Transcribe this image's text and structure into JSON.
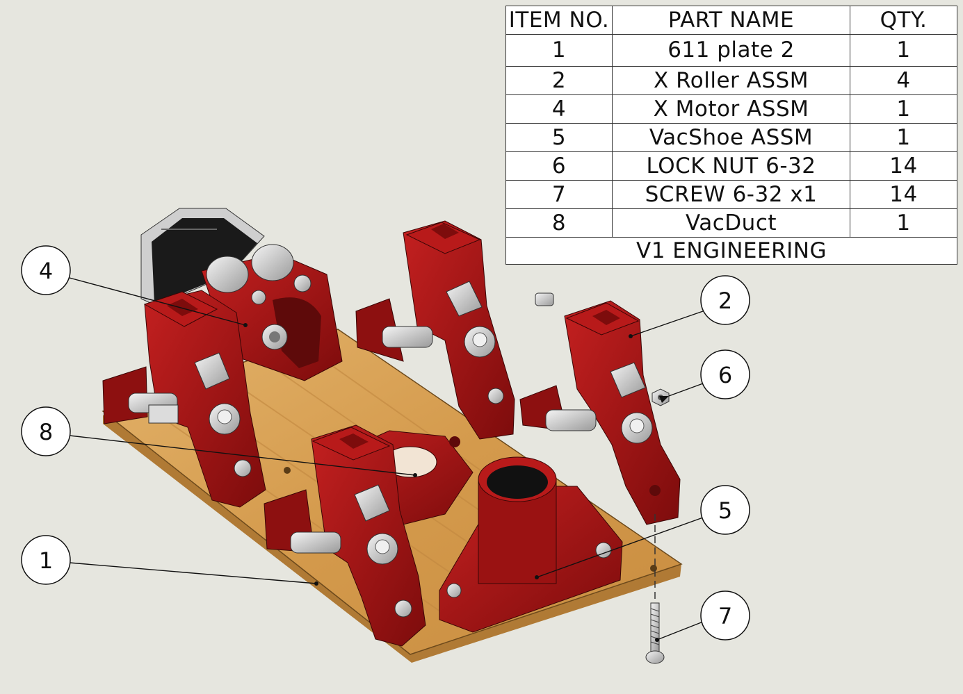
{
  "bom": {
    "headers": {
      "item": "ITEM NO.",
      "part": "PART NAME",
      "qty": "QTY."
    },
    "rows": [
      {
        "item": "1",
        "part": "611 plate 2",
        "qty": "1"
      },
      {
        "item": "2",
        "part": "X Roller ASSM",
        "qty": "4"
      },
      {
        "item": "4",
        "part": "X Motor ASSM",
        "qty": "1"
      },
      {
        "item": "5",
        "part": "VacShoe ASSM",
        "qty": "1"
      },
      {
        "item": "6",
        "part": "LOCK NUT 6-32",
        "qty": "14"
      },
      {
        "item": "7",
        "part": "SCREW 6-32 x1",
        "qty": "14"
      },
      {
        "item": "8",
        "part": "VacDuct",
        "qty": "1"
      }
    ],
    "footer": "V1 ENGINEERING"
  },
  "balloons": [
    {
      "label": "4"
    },
    {
      "label": "8"
    },
    {
      "label": "1"
    },
    {
      "label": "2"
    },
    {
      "label": "6"
    },
    {
      "label": "5"
    },
    {
      "label": "7"
    }
  ],
  "colors": {
    "background": "#e6e6df",
    "plastic_red": "#9e1414",
    "wood": "#d9a55a",
    "motor_black": "#1a1a1a"
  }
}
